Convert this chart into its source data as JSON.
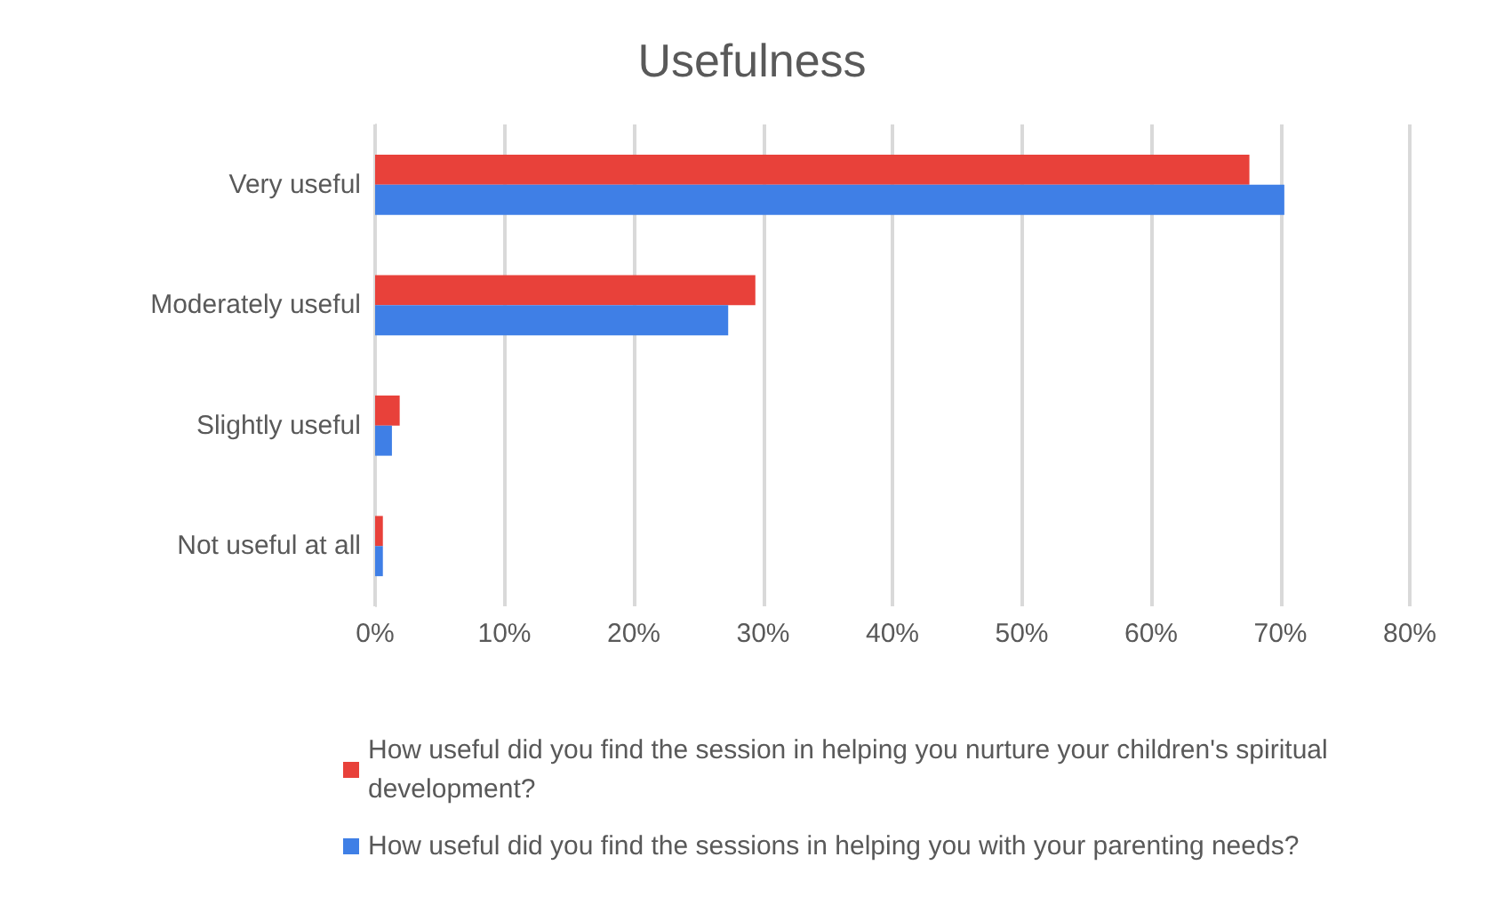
{
  "chart_data": {
    "type": "bar",
    "orientation": "horizontal",
    "title": "Usefulness",
    "categories": [
      "Very useful",
      "Moderately useful",
      "Slightly useful",
      "Not useful at all"
    ],
    "series": [
      {
        "name": "How useful did you find the session in helping you nurture your children's spiritual development?",
        "color": "#e8413a",
        "values": [
          67.6,
          29.4,
          1.9,
          0.6
        ]
      },
      {
        "name": "How useful did you find the sessions in helping you with your parenting needs?",
        "color": "#3f7fe6",
        "values": [
          70.3,
          27.3,
          1.3,
          0.6
        ]
      }
    ],
    "xlim": [
      0,
      80
    ],
    "xticks": [
      {
        "value": 0,
        "label": "0%"
      },
      {
        "value": 10,
        "label": "10%"
      },
      {
        "value": 20,
        "label": "20%"
      },
      {
        "value": 30,
        "label": "30%"
      },
      {
        "value": 40,
        "label": "40%"
      },
      {
        "value": 50,
        "label": "50%"
      },
      {
        "value": 60,
        "label": "60%"
      },
      {
        "value": 70,
        "label": "70%"
      },
      {
        "value": 80,
        "label": "80%"
      }
    ],
    "grid": "x",
    "legend": "bottom"
  }
}
